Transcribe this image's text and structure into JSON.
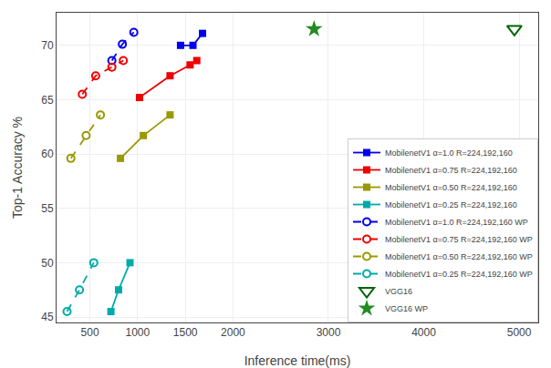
{
  "chart_data": {
    "type": "line",
    "xlabel": "Inference time(ms)",
    "ylabel": "Top-1 Accuracy %",
    "xlim": [
      150,
      5200
    ],
    "ylim": [
      44.5,
      73
    ],
    "xticks": [
      500,
      1000,
      1500,
      2000,
      3000,
      4000,
      5000
    ],
    "yticks": [
      45,
      50,
      55,
      60,
      65,
      70
    ],
    "grid": true,
    "legend": "lower right",
    "series": [
      {
        "name": "MobilenetV1 α=1.0 R=224,192,160",
        "color": "#0000ee",
        "line_style": "solid",
        "marker": "square",
        "x": [
          1450,
          1580,
          1680
        ],
        "values": [
          70.0,
          70.0,
          71.1
        ]
      },
      {
        "name": "MobilenetV1 α=0.75 R=224,192,160",
        "color": "#ee0000",
        "line_style": "solid",
        "marker": "square",
        "x": [
          1020,
          1340,
          1550,
          1620
        ],
        "values": [
          65.2,
          67.2,
          68.2,
          68.6
        ]
      },
      {
        "name": "MobilenetV1 α=0.50 R=224,192,160",
        "color": "#999900",
        "line_style": "solid",
        "marker": "square",
        "x": [
          820,
          1060,
          1340
        ],
        "values": [
          59.6,
          61.7,
          63.6
        ]
      },
      {
        "name": "MobilenetV1 α=0.25 R=224,192,160",
        "color": "#00aaaa",
        "line_style": "solid",
        "marker": "square",
        "x": [
          720,
          800,
          920
        ],
        "values": [
          45.5,
          47.5,
          50.0
        ]
      },
      {
        "name": "MobilenetV1 α=1.0 R=224,192,160 WP",
        "color": "#0000ee",
        "line_style": "dash",
        "marker": "circle-open",
        "x": [
          730,
          840,
          960
        ],
        "values": [
          68.6,
          70.1,
          71.2
        ]
      },
      {
        "name": "MobilenetV1 α=0.75 R=224,192,160 WP",
        "color": "#ee0000",
        "line_style": "dash",
        "marker": "circle-open",
        "x": [
          420,
          560,
          730,
          850
        ],
        "values": [
          65.5,
          67.2,
          68.0,
          68.6
        ]
      },
      {
        "name": "MobilenetV1 α=0.50 R=224,192,160 WP",
        "color": "#999900",
        "line_style": "dash",
        "marker": "circle-open",
        "x": [
          300,
          460,
          610
        ],
        "values": [
          59.6,
          61.7,
          63.6
        ]
      },
      {
        "name": "MobilenetV1 α=0.25 R=224,192,160 WP",
        "color": "#00aaaa",
        "line_style": "dash",
        "marker": "circle-open",
        "x": [
          260,
          390,
          540
        ],
        "values": [
          45.5,
          47.5,
          50.0
        ]
      },
      {
        "name": "VGG16",
        "type": "scatter",
        "color": "#006400",
        "line_style": "none",
        "marker": "triangle-down-open",
        "x": [
          4950
        ],
        "values": [
          71.5
        ]
      },
      {
        "name": "VGG16 WP",
        "type": "scatter",
        "color": "#228B22",
        "line_style": "none",
        "marker": "star",
        "x": [
          2850
        ],
        "values": [
          71.5
        ]
      }
    ]
  }
}
